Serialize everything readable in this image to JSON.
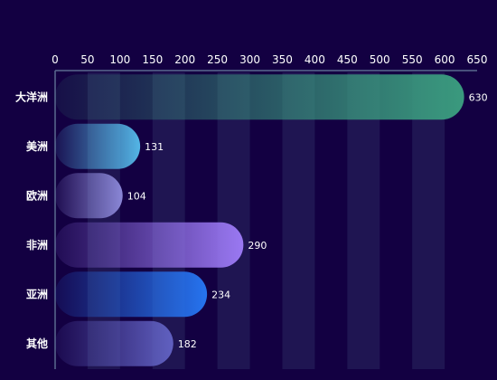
{
  "chart_data": {
    "type": "bar",
    "orientation": "horizontal",
    "categories": [
      "大洋洲",
      "美洲",
      "欧洲",
      "非洲",
      "亚洲",
      "其他"
    ],
    "values": [
      630,
      131,
      104,
      290,
      234,
      182
    ],
    "xlim": [
      0,
      650
    ],
    "x_ticks": [
      0,
      50,
      100,
      150,
      200,
      250,
      300,
      350,
      400,
      450,
      500,
      550,
      600,
      650
    ],
    "x_axis_position": "top",
    "grid": "alternating vertical bands",
    "show_value_labels": true,
    "bar_colors": [
      "#3a9a7e",
      "#54b6e6",
      "#8a86d6",
      "#9a78f2",
      "#2674f0",
      "#6060c0"
    ],
    "background_color": "#130042",
    "band_color": "#1f1552",
    "axis_color": "#5a6a90"
  }
}
